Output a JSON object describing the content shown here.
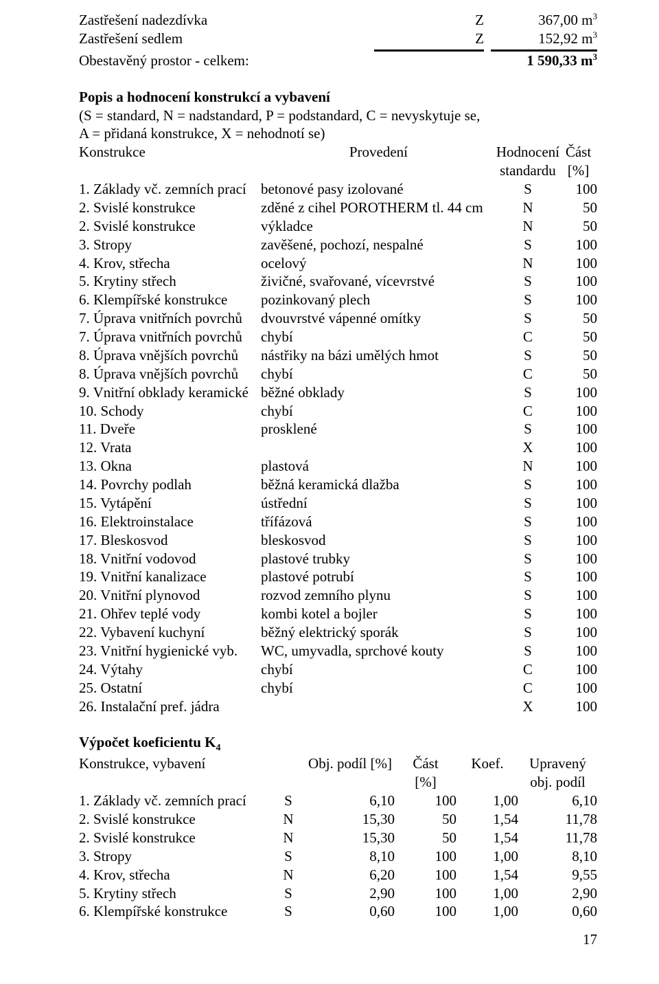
{
  "vol": {
    "rows": [
      {
        "label": "Zastřešení nadezdívka",
        "code": "Z",
        "val": "367,00 m",
        "sup": "3",
        "sum": false
      },
      {
        "label": "Zastřešení sedlem",
        "code": "Z",
        "val": "152,92 m",
        "sup": "3",
        "sum": false
      }
    ],
    "total": {
      "label": "Obestavěný prostor - celkem:",
      "val": "1 590,33 m",
      "sup": "3"
    }
  },
  "desc": {
    "title": "Popis a hodnocení konstrukcí a vybavení",
    "note1": "(S = standard, N = nadstandard, P = podstandard, C = nevyskytuje se,",
    "note2": "A = přidaná konstrukce, X = nehodnotí se)",
    "head": {
      "c1": "Konstrukce",
      "c2": "Provedení",
      "c3a": "Hodnocení",
      "c3b": "standardu",
      "c4a": "Část",
      "c4b": "[%]"
    }
  },
  "rows1": [
    {
      "a": "1. Základy vč. zemních prací",
      "b": "betonové pasy izolované",
      "c": "S",
      "d": "100"
    },
    {
      "a": "2. Svislé konstrukce",
      "b": "zděné z cihel POROTHERM tl. 44 cm",
      "c": "N",
      "d": "50"
    },
    {
      "a": "2. Svislé konstrukce",
      "b": "výkladce",
      "c": "N",
      "d": "50"
    },
    {
      "a": "3. Stropy",
      "b": "zavěšené, pochozí, nespalné",
      "c": "S",
      "d": "100"
    },
    {
      "a": "4. Krov, střecha",
      "b": "ocelový",
      "c": "N",
      "d": "100"
    },
    {
      "a": "5. Krytiny střech",
      "b": "živičné, svařované, vícevrstvé",
      "c": "S",
      "d": "100"
    },
    {
      "a": "6. Klempířské konstrukce",
      "b": "pozinkovaný plech",
      "c": "S",
      "d": "100"
    },
    {
      "a": "7. Úprava vnitřních povrchů",
      "b": "dvouvrstvé vápenné omítky",
      "c": "S",
      "d": "50"
    },
    {
      "a": "7. Úprava vnitřních povrchů",
      "b": "chybí",
      "c": "C",
      "d": "50"
    },
    {
      "a": "8. Úprava vnějších povrchů",
      "b": "nástřiky na bázi umělých hmot",
      "c": "S",
      "d": "50"
    },
    {
      "a": "8. Úprava vnějších povrchů",
      "b": "chybí",
      "c": "C",
      "d": "50"
    },
    {
      "a": "9. Vnitřní obklady keramické",
      "b": "běžné obklady",
      "c": "S",
      "d": "100"
    },
    {
      "a": "10. Schody",
      "b": "chybí",
      "c": "C",
      "d": "100"
    },
    {
      "a": "11. Dveře",
      "b": "prosklené",
      "c": "S",
      "d": "100"
    },
    {
      "a": "12. Vrata",
      "b": "",
      "c": "X",
      "d": "100"
    },
    {
      "a": "13. Okna",
      "b": "plastová",
      "c": "N",
      "d": "100"
    },
    {
      "a": "14. Povrchy podlah",
      "b": "běžná keramická dlažba",
      "c": "S",
      "d": "100"
    },
    {
      "a": "15. Vytápění",
      "b": "ústřední",
      "c": "S",
      "d": "100"
    },
    {
      "a": "16. Elektroinstalace",
      "b": "třífázová",
      "c": "S",
      "d": "100"
    },
    {
      "a": "17. Bleskosvod",
      "b": "bleskosvod",
      "c": "S",
      "d": "100"
    },
    {
      "a": "18. Vnitřní vodovod",
      "b": "plastové trubky",
      "c": "S",
      "d": "100"
    },
    {
      "a": "19. Vnitřní kanalizace",
      "b": "plastové potrubí",
      "c": "S",
      "d": "100"
    },
    {
      "a": "20. Vnitřní plynovod",
      "b": "rozvod zemního plynu",
      "c": "S",
      "d": "100"
    },
    {
      "a": "21. Ohřev teplé vody",
      "b": "kombi kotel a bojler",
      "c": "S",
      "d": "100"
    },
    {
      "a": "22. Vybavení kuchyní",
      "b": "běžný elektrický sporák",
      "c": "S",
      "d": "100"
    },
    {
      "a": "23. Vnitřní hygienické vyb.",
      "b": "WC, umyvadla, sprchové kouty",
      "c": "S",
      "d": "100"
    },
    {
      "a": "24. Výtahy",
      "b": "chybí",
      "c": "C",
      "d": "100"
    },
    {
      "a": "25. Ostatní",
      "b": "chybí",
      "c": "C",
      "d": "100"
    },
    {
      "a": "26. Instalační pref. jádra",
      "b": "",
      "c": "X",
      "d": "100"
    }
  ],
  "calc": {
    "title": "Výpočet koeficientu K",
    "sub": "4",
    "head": {
      "c1": "Konstrukce, vybavení",
      "c3": "Obj. podíl [%]",
      "c4a": "Část",
      "c4b": "[%]",
      "c5": "Koef.",
      "c6a": "Upravený",
      "c6b": "obj. podíl"
    }
  },
  "rows2": [
    {
      "a": "1. Základy vč. zemních prací",
      "b": "S",
      "c": "6,10",
      "d": "100",
      "e": "1,00",
      "f": "6,10"
    },
    {
      "a": "2. Svislé konstrukce",
      "b": "N",
      "c": "15,30",
      "d": "50",
      "e": "1,54",
      "f": "11,78"
    },
    {
      "a": "2. Svislé konstrukce",
      "b": "N",
      "c": "15,30",
      "d": "50",
      "e": "1,54",
      "f": "11,78"
    },
    {
      "a": "3. Stropy",
      "b": "S",
      "c": "8,10",
      "d": "100",
      "e": "1,00",
      "f": "8,10"
    },
    {
      "a": "4. Krov, střecha",
      "b": "N",
      "c": "6,20",
      "d": "100",
      "e": "1,54",
      "f": "9,55"
    },
    {
      "a": "5. Krytiny střech",
      "b": "S",
      "c": "2,90",
      "d": "100",
      "e": "1,00",
      "f": "2,90"
    },
    {
      "a": "6. Klempířské konstrukce",
      "b": "S",
      "c": "0,60",
      "d": "100",
      "e": "1,00",
      "f": "0,60"
    }
  ],
  "page_number": "17"
}
